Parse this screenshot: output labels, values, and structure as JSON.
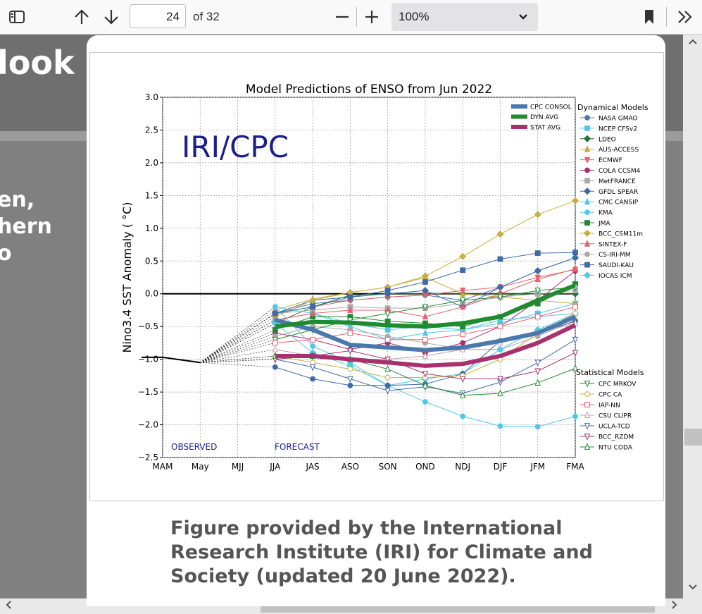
{
  "toolbar": {
    "page_number": "24",
    "page_count_label": "of 32",
    "zoom_value": "100%",
    "icons": [
      "sidebar-icon",
      "arrow-up-icon",
      "arrow-down-icon",
      "minus-icon",
      "plus-icon",
      "chevron-down-icon",
      "bookmark-icon",
      "double-chevron-right-icon"
    ]
  },
  "background_page": {
    "title_fragment": "look",
    "text_lines": [
      "en,",
      "hern",
      "o"
    ]
  },
  "figure": {
    "caption": "Figure provided by the International Research Institute (IRI) for Climate and Society (updated 20 June 2022)."
  },
  "chart_data": {
    "type": "line",
    "title": "Model Predictions of ENSO from Jun 2022",
    "ylabel": "Nino3.4 SST Anomaly ( °C)",
    "xlabel": "",
    "watermark": "IRI/CPC",
    "categories": [
      "MAM",
      "May",
      "MJJ",
      "JJA",
      "JAS",
      "ASO",
      "SON",
      "OND",
      "NDJ",
      "DJF",
      "JFM",
      "FMA"
    ],
    "yticks": [
      "3.0",
      "2.5",
      "2.0",
      "1.5",
      "1.0",
      "0.5",
      "0.0",
      "−0.5",
      "−1.0",
      "−1.5",
      "−2.0",
      "−2.5"
    ],
    "ylim": [
      -2.5,
      3.0
    ],
    "grid": true,
    "annotations": {
      "observed": "OBSERVED",
      "forecast": "FORECAST"
    },
    "observed": {
      "x": [
        "MAM",
        "May"
      ],
      "values": [
        -0.97,
        -1.05
      ]
    },
    "legend_headers": {
      "dynamical": "Dynamical Models",
      "statistical": "Statistical Models"
    },
    "avg_series": [
      {
        "name": "CPC CONSOL",
        "color": "#4a78ad",
        "values": [
          -0.4,
          -0.55,
          -0.78,
          -0.82,
          -0.86,
          -0.82,
          -0.72,
          -0.6,
          -0.35
        ]
      },
      {
        "name": "DYN AVG",
        "color": "#1f8a30",
        "values": [
          -0.5,
          -0.43,
          -0.44,
          -0.48,
          -0.5,
          -0.45,
          -0.35,
          -0.1,
          0.13
        ]
      },
      {
        "name": "STAT AVG",
        "color": "#a8306e",
        "values": [
          -0.95,
          -0.95,
          -1.0,
          -1.05,
          -1.1,
          -1.07,
          -0.95,
          -0.75,
          -0.48
        ]
      }
    ],
    "dynamical_models": [
      {
        "name": "NASA GMAO",
        "color": "#4a78ad",
        "marker": "circle",
        "values": [
          -0.3,
          -0.15,
          -0.1,
          -0.05,
          -0.02,
          -0.1,
          0.1,
          0.35,
          0.55
        ]
      },
      {
        "name": "NCEP CFSv2",
        "color": "#4ec8e8",
        "marker": "square",
        "values": [
          -0.4,
          -0.3,
          -0.45,
          -0.55,
          -0.5,
          -0.55,
          -0.45,
          -0.3,
          -0.15
        ]
      },
      {
        "name": "LDEO",
        "color": "#1f7a35",
        "marker": "diamond",
        "values": [
          -0.45,
          -0.2,
          -0.02,
          0.0,
          0.0,
          0.0,
          0.0,
          0.0,
          0.0
        ]
      },
      {
        "name": "AUS-ACCESS",
        "color": "#c8a93a",
        "marker": "triangle-up",
        "values": [
          -0.25,
          -0.08,
          0.02,
          0.1,
          0.25,
          0.0,
          -0.05,
          -0.1,
          -0.15
        ]
      },
      {
        "name": "ECMWF",
        "color": "#e8606a",
        "marker": "triangle-down",
        "values": [
          -0.3,
          -0.2,
          -0.1,
          -0.05,
          -0.02,
          0.05,
          0.1,
          0.25,
          0.37
        ]
      },
      {
        "name": "COLA CCSM4",
        "color": "#a8306e",
        "marker": "circle",
        "values": [
          -0.6,
          -0.7,
          -0.85,
          -0.75,
          -0.9,
          -0.75,
          -0.5,
          -0.1,
          0.35
        ]
      },
      {
        "name": "MetFRANCE",
        "color": "#aaaaaa",
        "marker": "square",
        "values": [
          -0.3,
          -0.25,
          -0.2,
          -0.22,
          -0.22,
          -0.15,
          -0.05,
          0.0,
          0.05
        ]
      },
      {
        "name": "GFDL SPEAR",
        "color": "#3f6aa8",
        "marker": "diamond",
        "values": [
          -0.3,
          -0.1,
          -0.05,
          0.0,
          0.05,
          -0.2,
          0.1,
          0.35,
          0.55
        ]
      },
      {
        "name": "CMC CANSIP",
        "color": "#4ec8e8",
        "marker": "triangle-up",
        "values": [
          -0.2,
          -0.3,
          -0.5,
          -0.7,
          -0.6,
          -0.55,
          -0.4,
          -0.35,
          -0.3
        ]
      },
      {
        "name": "KMA",
        "color": "#4ec8e8",
        "marker": "circle",
        "values": [
          -0.2,
          -0.8,
          -1.05,
          -1.4,
          -1.65,
          -1.87,
          -2.02,
          -2.03,
          -1.87
        ]
      },
      {
        "name": "JMA",
        "color": "#1f8a30",
        "marker": "square",
        "values": [
          -0.55,
          -0.35,
          -0.35,
          -0.42,
          -0.45,
          -0.5,
          -0.35,
          -0.15,
          0.15
        ]
      },
      {
        "name": "BCC_CSM11m",
        "color": "#c8b040",
        "marker": "diamond",
        "values": [
          -0.35,
          -0.1,
          0.02,
          0.1,
          0.27,
          0.57,
          0.91,
          1.21,
          1.42
        ]
      },
      {
        "name": "SINTEX-F",
        "color": "#e8606a",
        "marker": "triangle-up",
        "values": [
          -0.4,
          -0.3,
          -0.25,
          -0.25,
          -0.35,
          -0.2,
          0.0,
          0.22,
          0.38
        ]
      },
      {
        "name": "CS-IRI-MM",
        "color": "#aaaaaa",
        "marker": "circle",
        "values": [
          -0.65,
          -0.5,
          -0.55,
          -0.65,
          -0.75,
          -0.85,
          -0.85,
          -0.65,
          -0.4
        ]
      },
      {
        "name": "SAUDI-KAU",
        "color": "#3f6aa8",
        "marker": "square",
        "values": [
          -0.3,
          -0.2,
          -0.05,
          0.05,
          0.18,
          0.36,
          0.53,
          0.62,
          0.63
        ]
      },
      {
        "name": "IOCAS ICM",
        "color": "#4ec8e8",
        "marker": "diamond",
        "values": [
          -0.45,
          -0.9,
          -1.1,
          -1.4,
          -1.3,
          -1.22,
          -0.85,
          -0.55,
          -0.3
        ]
      }
    ],
    "statistical_models": [
      {
        "name": "CPC MRKOV",
        "color": "#1f8a30",
        "marker": "triangle-down",
        "values": [
          -0.7,
          -0.55,
          -0.4,
          -0.3,
          -0.2,
          -0.1,
          -0.05,
          0.05,
          0.1
        ]
      },
      {
        "name": "CPC CA",
        "color": "#c8b040",
        "marker": "circle",
        "values": [
          -0.95,
          -1.05,
          -1.15,
          -1.28,
          -1.28,
          -1.25,
          -1.0,
          -0.6,
          -0.3
        ]
      },
      {
        "name": "IAP-NN",
        "color": "#e8606a",
        "marker": "square",
        "values": [
          -0.75,
          -0.7,
          -0.6,
          -0.7,
          -0.7,
          -0.62,
          -0.5,
          -0.35,
          -0.2
        ]
      },
      {
        "name": "CSU CLIPR",
        "color": "#c0a0a8",
        "marker": "triangle-up",
        "values": [
          -0.85,
          -0.95,
          -1.0,
          -1.0,
          -0.95,
          -0.85,
          -0.75,
          -0.6,
          -0.45
        ]
      },
      {
        "name": "UCLA-TCD",
        "color": "#3f6aa8",
        "marker": "triangle-down",
        "values": [
          -1.0,
          -1.12,
          -1.3,
          -1.48,
          -1.42,
          -1.52,
          -1.35,
          -1.05,
          -0.7
        ]
      },
      {
        "name": "BCC_RZDM",
        "color": "#a8306e",
        "marker": "triangle-down",
        "values": [
          -1.0,
          -0.95,
          -0.87,
          -1.0,
          -1.22,
          -1.3,
          -1.3,
          -1.18,
          -0.9
        ]
      },
      {
        "name": "NTU CODA",
        "color": "#1f8a30",
        "marker": "triangle-up",
        "values": [
          -0.95,
          -0.95,
          -1.0,
          -1.15,
          -1.4,
          -1.55,
          -1.52,
          -1.36,
          -1.14
        ]
      }
    ],
    "extra_lines": [
      {
        "color": "#3f6aa8",
        "marker": "circle",
        "values": [
          -1.12,
          -1.3,
          -1.4,
          -1.4,
          -1.38,
          -1.22,
          -0.72,
          -0.6,
          -0.42
        ]
      }
    ]
  }
}
